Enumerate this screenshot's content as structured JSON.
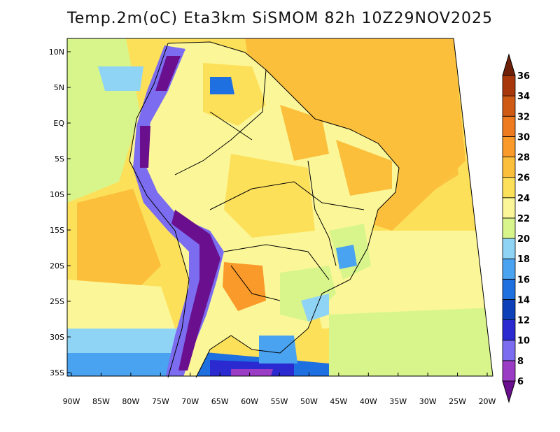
{
  "title": "Temp.2m(oC) Eta3km SiSMOM 82h 10Z29NOV2025",
  "lat_ticks": [
    "10N",
    "5N",
    "EQ",
    "5S",
    "10S",
    "15S",
    "20S",
    "25S",
    "30S",
    "35S"
  ],
  "lon_ticks": [
    "90W",
    "85W",
    "80W",
    "75W",
    "70W",
    "65W",
    "60W",
    "55W",
    "50W",
    "45W",
    "40W",
    "35W",
    "30W",
    "25W",
    "20W"
  ],
  "colorbar": {
    "labels": [
      "6",
      "8",
      "10",
      "12",
      "14",
      "16",
      "18",
      "20",
      "22",
      "24",
      "26",
      "28",
      "30",
      "32",
      "34",
      "36"
    ],
    "colors": [
      "#6a0f8e",
      "#9b3cc4",
      "#7b6cf0",
      "#2a2ad0",
      "#0c3fb8",
      "#1e6fe0",
      "#4aa3f0",
      "#8fd3f5",
      "#d8f58c",
      "#fbf798",
      "#fde05a",
      "#fbbf3c",
      "#f99a2a",
      "#ee7b1f",
      "#cf5a14",
      "#a8380c",
      "#6e2108"
    ]
  }
}
